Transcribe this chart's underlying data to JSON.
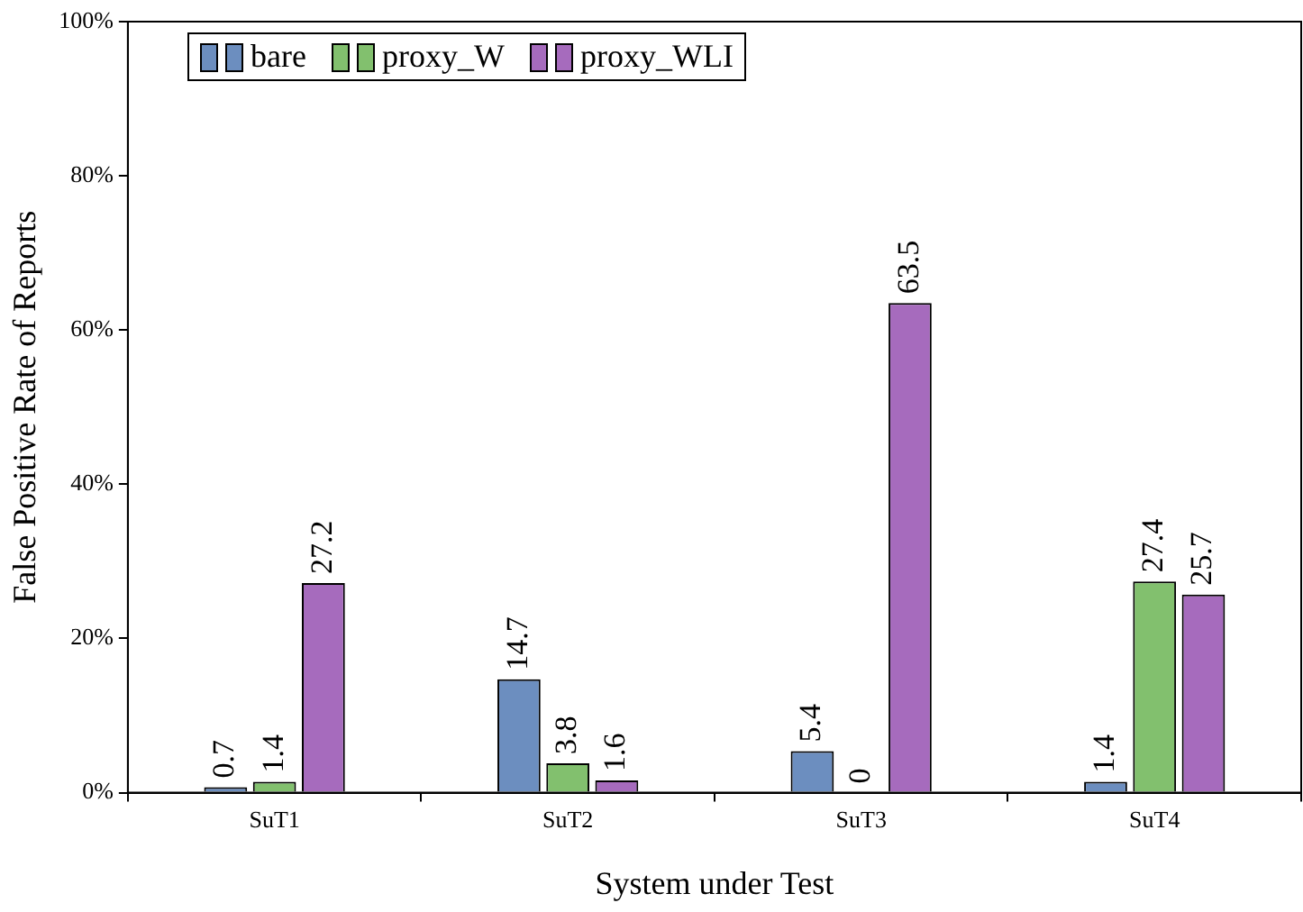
{
  "chart_data": {
    "type": "bar",
    "xlabel": "System under Test",
    "ylabel": "False Positive Rate of Reports",
    "categories": [
      "SuT1",
      "SuT2",
      "SuT3",
      "SuT4"
    ],
    "series": [
      {
        "name": "bare",
        "color": "#6c8ebf",
        "values": [
          0.7,
          14.7,
          5.4,
          1.4
        ]
      },
      {
        "name": "proxy_W",
        "color": "#82c06e",
        "values": [
          1.4,
          3.8,
          0,
          27.4
        ]
      },
      {
        "name": "proxy_WLI",
        "color": "#a66bbd",
        "values": [
          27.2,
          1.6,
          63.5,
          25.7
        ]
      }
    ],
    "ylim": [
      0,
      100
    ],
    "yticks": [
      {
        "value": 0,
        "label": "0%"
      },
      {
        "value": 20,
        "label": "20%"
      },
      {
        "value": 40,
        "label": "40%"
      },
      {
        "value": 60,
        "label": "60%"
      },
      {
        "value": 80,
        "label": "80%"
      },
      {
        "value": 100,
        "label": "100%"
      }
    ],
    "legend": "top left",
    "data_labels": true
  }
}
